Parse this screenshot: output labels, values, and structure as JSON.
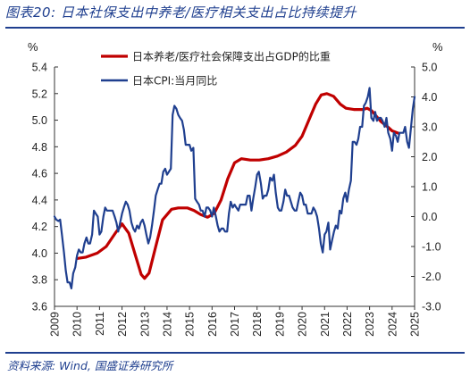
{
  "title": "图表20:  日本社保支出中养老/医疗相关支出占比持续提升",
  "source": "资料来源:  Wind,  国盛证券研究所",
  "chart_data": {
    "type": "line",
    "left_axis": {
      "unit": "%",
      "min": 3.6,
      "max": 5.4,
      "step": 0.2,
      "ticks": [
        "3.6",
        "3.8",
        "4.0",
        "4.2",
        "4.4",
        "4.6",
        "4.8",
        "5.0",
        "5.2",
        "5.4"
      ]
    },
    "right_axis": {
      "unit": "%",
      "min": -3.0,
      "max": 5.0,
      "step": 1.0,
      "ticks": [
        "-3.0",
        "-2.0",
        "-1.0",
        "0.0",
        "1.0",
        "2.0",
        "3.0",
        "4.0",
        "5.0"
      ]
    },
    "x_ticks": [
      "2009",
      "2010",
      "2011",
      "2012",
      "2013",
      "2014",
      "2015",
      "2016",
      "2017",
      "2018",
      "2019",
      "2020",
      "2021",
      "2022",
      "2023",
      "2024",
      "2025"
    ],
    "legend_position": "top-center",
    "series": [
      {
        "name": "日本养老/医疗社会保障支出占GDP的比重",
        "axis": "left",
        "color": "#c00000",
        "points": [
          [
            2010.0,
            3.96
          ],
          [
            2010.4,
            3.97
          ],
          [
            2010.9,
            4.0
          ],
          [
            2011.3,
            4.05
          ],
          [
            2011.7,
            4.15
          ],
          [
            2012.0,
            4.22
          ],
          [
            2012.3,
            4.15
          ],
          [
            2012.6,
            3.98
          ],
          [
            2012.85,
            3.84
          ],
          [
            2013.0,
            3.81
          ],
          [
            2013.2,
            3.85
          ],
          [
            2013.5,
            4.05
          ],
          [
            2013.8,
            4.25
          ],
          [
            2014.2,
            4.33
          ],
          [
            2014.5,
            4.34
          ],
          [
            2014.9,
            4.34
          ],
          [
            2015.2,
            4.32
          ],
          [
            2015.5,
            4.29
          ],
          [
            2015.8,
            4.27
          ],
          [
            2016.1,
            4.3
          ],
          [
            2016.4,
            4.4
          ],
          [
            2016.7,
            4.56
          ],
          [
            2017.0,
            4.68
          ],
          [
            2017.3,
            4.71
          ],
          [
            2017.7,
            4.7
          ],
          [
            2018.1,
            4.7
          ],
          [
            2018.5,
            4.71
          ],
          [
            2018.9,
            4.73
          ],
          [
            2019.3,
            4.76
          ],
          [
            2019.7,
            4.81
          ],
          [
            2020.0,
            4.88
          ],
          [
            2020.3,
            5.0
          ],
          [
            2020.6,
            5.12
          ],
          [
            2020.85,
            5.19
          ],
          [
            2021.1,
            5.2
          ],
          [
            2021.4,
            5.18
          ],
          [
            2021.7,
            5.12
          ],
          [
            2021.95,
            5.09
          ],
          [
            2022.3,
            5.08
          ],
          [
            2022.7,
            5.08
          ],
          [
            2022.9,
            5.09
          ],
          [
            2023.1,
            5.07
          ],
          [
            2023.3,
            5.03
          ],
          [
            2023.5,
            4.99
          ],
          [
            2023.8,
            4.95
          ],
          [
            2024.0,
            4.92
          ],
          [
            2024.3,
            4.9
          ]
        ]
      },
      {
        "name": "日本CPI:当月同比",
        "axis": "right",
        "color": "#1f3f8f",
        "points": [
          [
            2009.0,
            0.0
          ],
          [
            2009.08,
            -0.1
          ],
          [
            2009.17,
            -0.15
          ],
          [
            2009.25,
            -0.1
          ],
          [
            2009.33,
            -0.6
          ],
          [
            2009.42,
            -1.2
          ],
          [
            2009.5,
            -1.8
          ],
          [
            2009.58,
            -2.2
          ],
          [
            2009.67,
            -2.2
          ],
          [
            2009.75,
            -2.4
          ],
          [
            2009.83,
            -1.9
          ],
          [
            2009.92,
            -1.7
          ],
          [
            2010.0,
            -1.3
          ],
          [
            2010.08,
            -1.1
          ],
          [
            2010.17,
            -1.2
          ],
          [
            2010.25,
            -1.2
          ],
          [
            2010.33,
            -0.9
          ],
          [
            2010.42,
            -0.7
          ],
          [
            2010.5,
            -0.9
          ],
          [
            2010.58,
            -0.9
          ],
          [
            2010.67,
            -0.6
          ],
          [
            2010.75,
            0.2
          ],
          [
            2010.83,
            0.1
          ],
          [
            2010.92,
            0.0
          ],
          [
            2011.0,
            -0.6
          ],
          [
            2011.08,
            -0.5
          ],
          [
            2011.17,
            0.0
          ],
          [
            2011.25,
            0.3
          ],
          [
            2011.33,
            0.2
          ],
          [
            2011.42,
            0.2
          ],
          [
            2011.5,
            0.2
          ],
          [
            2011.58,
            0.2
          ],
          [
            2011.67,
            0.0
          ],
          [
            2011.75,
            -0.2
          ],
          [
            2011.83,
            -0.5
          ],
          [
            2011.92,
            -0.2
          ],
          [
            2012.0,
            0.1
          ],
          [
            2012.08,
            0.3
          ],
          [
            2012.17,
            0.5
          ],
          [
            2012.25,
            0.4
          ],
          [
            2012.33,
            0.2
          ],
          [
            2012.42,
            -0.2
          ],
          [
            2012.5,
            -0.4
          ],
          [
            2012.58,
            -0.5
          ],
          [
            2012.67,
            -0.3
          ],
          [
            2012.75,
            -0.4
          ],
          [
            2012.83,
            -0.2
          ],
          [
            2012.92,
            -0.1
          ],
          [
            2013.0,
            -0.3
          ],
          [
            2013.08,
            -0.6
          ],
          [
            2013.17,
            -0.9
          ],
          [
            2013.25,
            -0.7
          ],
          [
            2013.33,
            -0.3
          ],
          [
            2013.42,
            0.2
          ],
          [
            2013.5,
            0.7
          ],
          [
            2013.58,
            0.9
          ],
          [
            2013.67,
            1.1
          ],
          [
            2013.75,
            1.1
          ],
          [
            2013.83,
            1.5
          ],
          [
            2013.92,
            1.6
          ],
          [
            2014.0,
            1.4
          ],
          [
            2014.08,
            1.5
          ],
          [
            2014.17,
            1.6
          ],
          [
            2014.25,
            3.4
          ],
          [
            2014.33,
            3.7
          ],
          [
            2014.42,
            3.6
          ],
          [
            2014.5,
            3.4
          ],
          [
            2014.58,
            3.3
          ],
          [
            2014.67,
            3.2
          ],
          [
            2014.75,
            2.9
          ],
          [
            2014.83,
            2.4
          ],
          [
            2014.92,
            2.4
          ],
          [
            2015.0,
            2.4
          ],
          [
            2015.08,
            2.2
          ],
          [
            2015.17,
            2.3
          ],
          [
            2015.25,
            0.6
          ],
          [
            2015.33,
            0.5
          ],
          [
            2015.42,
            0.4
          ],
          [
            2015.5,
            0.2
          ],
          [
            2015.58,
            0.2
          ],
          [
            2015.67,
            0.0
          ],
          [
            2015.75,
            0.3
          ],
          [
            2015.83,
            0.3
          ],
          [
            2015.92,
            0.2
          ],
          [
            2016.0,
            0.0
          ],
          [
            2016.08,
            0.3
          ],
          [
            2016.17,
            0.0
          ],
          [
            2016.25,
            -0.3
          ],
          [
            2016.33,
            -0.5
          ],
          [
            2016.42,
            -0.4
          ],
          [
            2016.5,
            -0.4
          ],
          [
            2016.58,
            -0.5
          ],
          [
            2016.67,
            -0.5
          ],
          [
            2016.75,
            0.1
          ],
          [
            2016.83,
            0.5
          ],
          [
            2016.92,
            0.3
          ],
          [
            2017.0,
            0.4
          ],
          [
            2017.08,
            0.3
          ],
          [
            2017.17,
            0.2
          ],
          [
            2017.25,
            0.4
          ],
          [
            2017.33,
            0.4
          ],
          [
            2017.42,
            0.4
          ],
          [
            2017.5,
            0.4
          ],
          [
            2017.58,
            0.7
          ],
          [
            2017.67,
            0.7
          ],
          [
            2017.75,
            0.2
          ],
          [
            2017.83,
            0.6
          ],
          [
            2017.92,
            1.0
          ],
          [
            2018.0,
            1.4
          ],
          [
            2018.08,
            1.5
          ],
          [
            2018.17,
            1.1
          ],
          [
            2018.25,
            0.6
          ],
          [
            2018.33,
            0.7
          ],
          [
            2018.42,
            0.7
          ],
          [
            2018.5,
            0.9
          ],
          [
            2018.58,
            1.3
          ],
          [
            2018.67,
            1.2
          ],
          [
            2018.75,
            1.4
          ],
          [
            2018.83,
            0.8
          ],
          [
            2018.92,
            0.3
          ],
          [
            2019.0,
            0.2
          ],
          [
            2019.08,
            0.2
          ],
          [
            2019.17,
            0.5
          ],
          [
            2019.25,
            0.9
          ],
          [
            2019.33,
            0.7
          ],
          [
            2019.42,
            0.7
          ],
          [
            2019.5,
            0.5
          ],
          [
            2019.58,
            0.3
          ],
          [
            2019.67,
            0.2
          ],
          [
            2019.75,
            0.2
          ],
          [
            2019.83,
            0.5
          ],
          [
            2019.92,
            0.8
          ],
          [
            2020.0,
            0.7
          ],
          [
            2020.08,
            0.4
          ],
          [
            2020.17,
            0.4
          ],
          [
            2020.25,
            0.1
          ],
          [
            2020.33,
            0.1
          ],
          [
            2020.42,
            0.1
          ],
          [
            2020.5,
            0.3
          ],
          [
            2020.58,
            0.2
          ],
          [
            2020.67,
            0.0
          ],
          [
            2020.75,
            -0.4
          ],
          [
            2020.83,
            -0.9
          ],
          [
            2020.92,
            -1.2
          ],
          [
            2021.0,
            -0.6
          ],
          [
            2021.08,
            -0.5
          ],
          [
            2021.17,
            -0.2
          ],
          [
            2021.25,
            -1.1
          ],
          [
            2021.33,
            -0.8
          ],
          [
            2021.42,
            -0.5
          ],
          [
            2021.5,
            -0.3
          ],
          [
            2021.58,
            -0.4
          ],
          [
            2021.67,
            0.2
          ],
          [
            2021.75,
            0.1
          ],
          [
            2021.83,
            0.6
          ],
          [
            2021.92,
            0.8
          ],
          [
            2022.0,
            0.5
          ],
          [
            2022.08,
            0.9
          ],
          [
            2022.17,
            1.2
          ],
          [
            2022.25,
            2.5
          ],
          [
            2022.33,
            2.5
          ],
          [
            2022.42,
            2.4
          ],
          [
            2022.5,
            2.6
          ],
          [
            2022.58,
            3.0
          ],
          [
            2022.67,
            3.0
          ],
          [
            2022.75,
            3.7
          ],
          [
            2022.83,
            3.8
          ],
          [
            2022.92,
            4.0
          ],
          [
            2023.0,
            4.3
          ],
          [
            2023.08,
            3.3
          ],
          [
            2023.17,
            3.2
          ],
          [
            2023.25,
            3.5
          ],
          [
            2023.33,
            3.2
          ],
          [
            2023.42,
            3.3
          ],
          [
            2023.5,
            3.3
          ],
          [
            2023.58,
            3.2
          ],
          [
            2023.67,
            3.0
          ],
          [
            2023.75,
            3.3
          ],
          [
            2023.83,
            2.8
          ],
          [
            2023.92,
            2.6
          ],
          [
            2024.0,
            2.2
          ],
          [
            2024.08,
            2.8
          ],
          [
            2024.17,
            2.7
          ],
          [
            2024.25,
            2.5
          ],
          [
            2024.33,
            2.8
          ],
          [
            2024.42,
            2.8
          ],
          [
            2024.5,
            2.8
          ],
          [
            2024.58,
            3.0
          ],
          [
            2024.67,
            2.5
          ],
          [
            2024.75,
            2.3
          ],
          [
            2024.83,
            2.9
          ],
          [
            2024.92,
            3.6
          ],
          [
            2025.0,
            4.0
          ]
        ]
      }
    ]
  }
}
